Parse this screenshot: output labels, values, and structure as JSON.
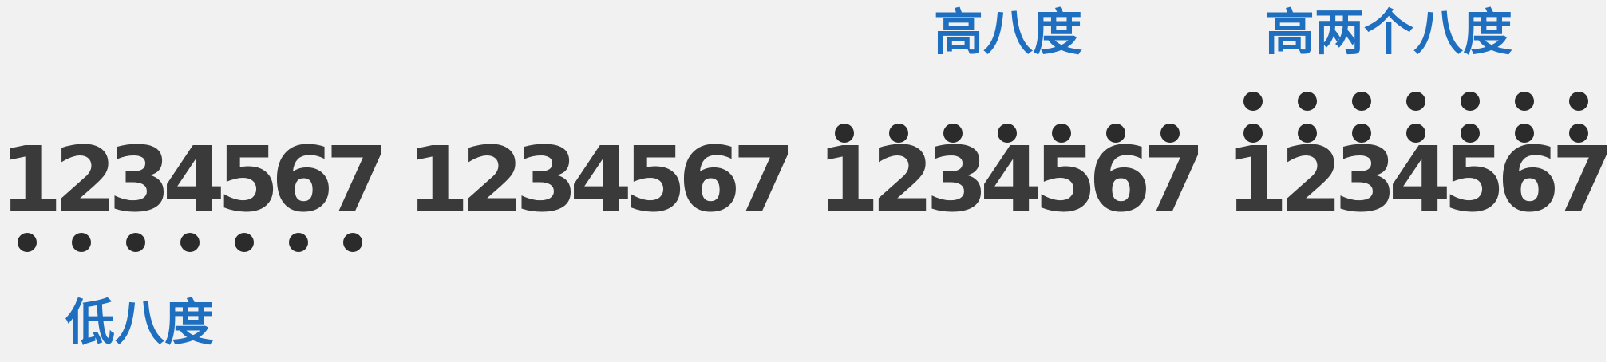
{
  "groups": [
    {
      "digits": [
        "1",
        "2",
        "3",
        "4",
        "5",
        "6",
        "7"
      ],
      "dots_above": 0,
      "dots_below": 1
    },
    {
      "digits": [
        "1",
        "2",
        "3",
        "4",
        "5",
        "6",
        "7"
      ],
      "dots_above": 0,
      "dots_below": 0
    },
    {
      "digits": [
        "1",
        "2",
        "3",
        "4",
        "5",
        "6",
        "7"
      ],
      "dots_above": 1,
      "dots_below": 0
    },
    {
      "digits": [
        "1",
        "2",
        "3",
        "4",
        "5",
        "6",
        "7"
      ],
      "dots_above": 2,
      "dots_below": 0
    }
  ],
  "labels": {
    "low_octave": "低八度",
    "high_octave": "高八度",
    "two_octaves_high": "高两个八度"
  },
  "colors": {
    "background": "#f1f1f1",
    "digit": "#3a3a3a",
    "dot": "#2b2b2b",
    "label": "#1f6fc0"
  }
}
